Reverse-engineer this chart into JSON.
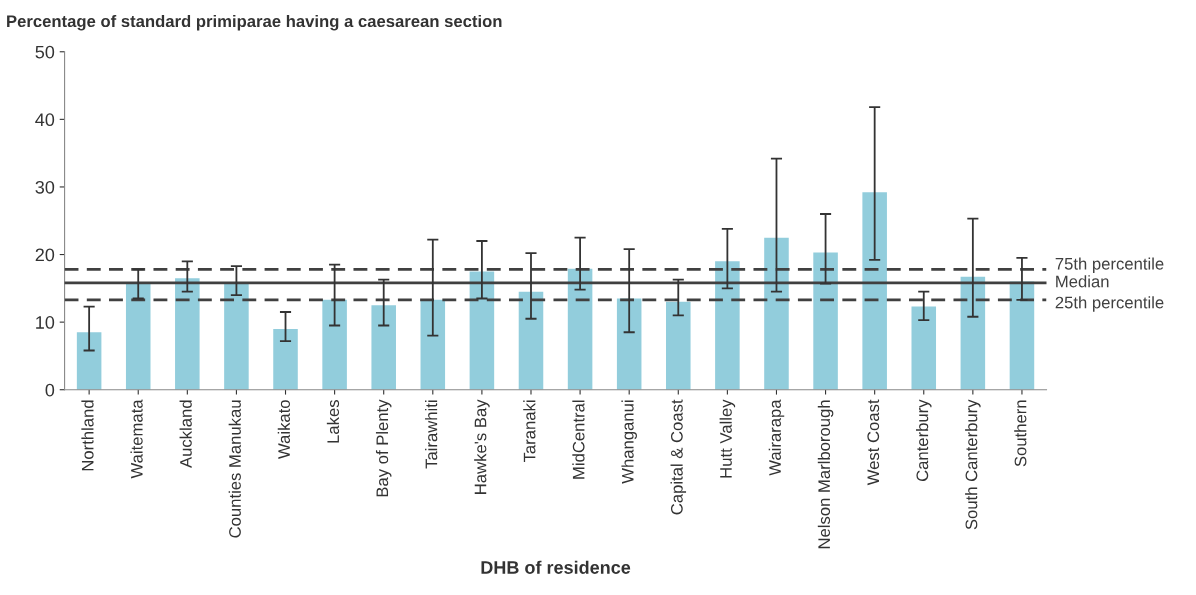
{
  "chart_data": {
    "type": "bar",
    "title": "Percentage of standard primiparae having a caesarean section",
    "xlabel": "DHB of residence",
    "categories": [
      "Northland",
      "Waitemata",
      "Auckland",
      "Counties Manukau",
      "Waikato",
      "Lakes",
      "Bay of Plenty",
      "Tairawhiti",
      "Hawke's Bay",
      "Taranaki",
      "MidCentral",
      "Whanganui",
      "Capital & Coast",
      "Hutt Valley",
      "Wairarapa",
      "Nelson Marlborough",
      "West Coast",
      "Canterbury",
      "South Canterbury",
      "Southern"
    ],
    "values": [
      8.5,
      15.9,
      16.5,
      15.8,
      9.0,
      13.3,
      12.5,
      13.3,
      17.5,
      14.5,
      17.9,
      13.5,
      13.0,
      19.0,
      22.5,
      20.3,
      29.2,
      12.3,
      16.7,
      16.0
    ],
    "errors": [
      [
        5.8,
        12.3
      ],
      [
        13.5,
        17.8
      ],
      [
        14.5,
        19.0
      ],
      [
        14.0,
        18.3
      ],
      [
        7.2,
        11.5
      ],
      [
        9.5,
        18.5
      ],
      [
        9.5,
        16.3
      ],
      [
        8.0,
        22.2
      ],
      [
        13.5,
        22.0
      ],
      [
        10.5,
        20.2
      ],
      [
        14.8,
        22.5
      ],
      [
        8.5,
        20.8
      ],
      [
        11.0,
        16.3
      ],
      [
        15.0,
        23.8
      ],
      [
        14.5,
        34.2
      ],
      [
        15.7,
        26.0
      ],
      [
        19.2,
        41.8
      ],
      [
        10.3,
        14.5
      ],
      [
        10.8,
        25.3
      ],
      [
        13.3,
        19.5
      ]
    ],
    "color": "#92cddc",
    "ylim": [
      0,
      50
    ],
    "yticks": [
      0,
      10,
      20,
      30,
      40,
      50
    ],
    "grid": false,
    "ref_lines": [
      {
        "axis": "y",
        "value": 17.8,
        "label": "75th percentile",
        "line_style": "dashed",
        "color": "#404040"
      },
      {
        "axis": "y",
        "value": 15.8,
        "label": "Median",
        "line_style": "solid",
        "color": "#404040"
      },
      {
        "axis": "y",
        "value": 13.3,
        "label": "25th percentile",
        "line_style": "dashed",
        "color": "#404040"
      }
    ]
  }
}
